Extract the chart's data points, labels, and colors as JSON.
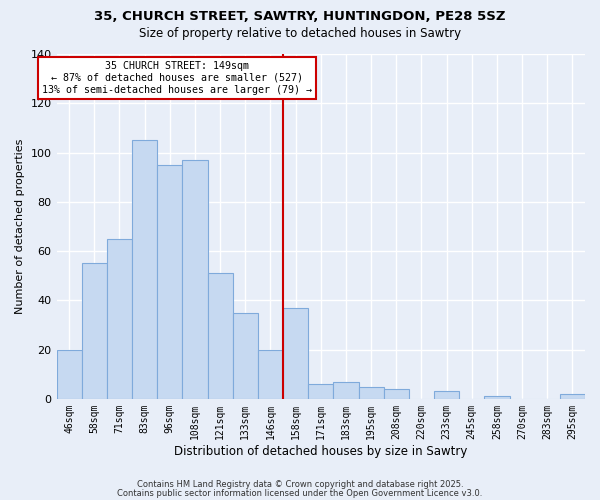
{
  "title_line1": "35, CHURCH STREET, SAWTRY, HUNTINGDON, PE28 5SZ",
  "title_line2": "Size of property relative to detached houses in Sawtry",
  "xlabel": "Distribution of detached houses by size in Sawtry",
  "ylabel": "Number of detached properties",
  "bar_labels": [
    "46sqm",
    "58sqm",
    "71sqm",
    "83sqm",
    "96sqm",
    "108sqm",
    "121sqm",
    "133sqm",
    "146sqm",
    "158sqm",
    "171sqm",
    "183sqm",
    "195sqm",
    "208sqm",
    "220sqm",
    "233sqm",
    "245sqm",
    "258sqm",
    "270sqm",
    "283sqm",
    "295sqm"
  ],
  "bar_values": [
    20,
    55,
    65,
    105,
    95,
    97,
    51,
    35,
    20,
    37,
    6,
    7,
    5,
    4,
    0,
    3,
    0,
    1,
    0,
    0,
    2
  ],
  "bar_color": "#c6d9f1",
  "bar_edgecolor": "#7faadb",
  "vline_color": "#cc0000",
  "annotation_title": "35 CHURCH STREET: 149sqm",
  "annotation_line2": "← 87% of detached houses are smaller (527)",
  "annotation_line3": "13% of semi-detached houses are larger (79) →",
  "annotation_box_edgecolor": "#cc0000",
  "annotation_box_facecolor": "#ffffff",
  "ylim": [
    0,
    140
  ],
  "yticks": [
    0,
    20,
    40,
    60,
    80,
    100,
    120,
    140
  ],
  "footer_line1": "Contains HM Land Registry data © Crown copyright and database right 2025.",
  "footer_line2": "Contains public sector information licensed under the Open Government Licence v3.0.",
  "background_color": "#e8eef8",
  "grid_color": "#ffffff"
}
